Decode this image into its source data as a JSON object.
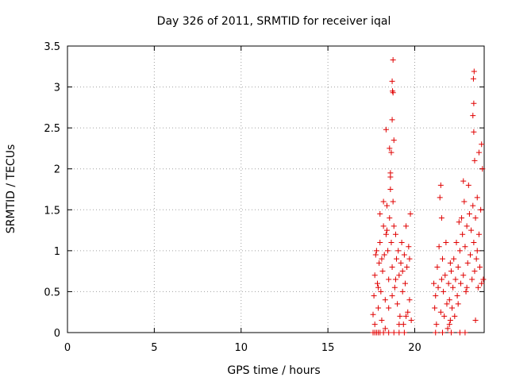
{
  "chart_data": {
    "type": "scatter",
    "title": "Day 326 of 2011, SRMTID for receiver iqal",
    "xlabel": "GPS time / hours",
    "ylabel": "SRMTID / TECUs",
    "xlim": [
      0,
      24
    ],
    "ylim": [
      0,
      3.5
    ],
    "xticks": [
      0,
      5,
      10,
      15,
      20
    ],
    "xtick_labels": [
      "0",
      "5",
      "10",
      "15",
      "20"
    ],
    "yticks": [
      0,
      0.5,
      1,
      1.5,
      2,
      2.5,
      3,
      3.5
    ],
    "ytick_labels": [
      "0",
      "0.5",
      "1",
      "1.5",
      "2",
      "2.5",
      "3",
      "3.5"
    ],
    "grid": true,
    "marker": "+",
    "color": "#e00000",
    "series": [
      {
        "name": "SRMTID",
        "points": [
          [
            17.6,
            0.0
          ],
          [
            17.7,
            0.0
          ],
          [
            17.8,
            0.0
          ],
          [
            17.9,
            0.0
          ],
          [
            18.0,
            0.0
          ],
          [
            18.2,
            0.0
          ],
          [
            18.5,
            0.0
          ],
          [
            18.8,
            0.0
          ],
          [
            19.1,
            0.0
          ],
          [
            19.4,
            0.0
          ],
          [
            17.6,
            0.22
          ],
          [
            17.65,
            0.45
          ],
          [
            17.7,
            0.7
          ],
          [
            17.75,
            0.95
          ],
          [
            17.8,
            1.0
          ],
          [
            17.85,
            0.6
          ],
          [
            17.9,
            0.3
          ],
          [
            17.95,
            0.85
          ],
          [
            18.0,
            1.1
          ],
          [
            18.05,
            0.5
          ],
          [
            18.1,
            0.15
          ],
          [
            18.15,
            0.75
          ],
          [
            18.2,
            1.3
          ],
          [
            18.25,
            0.95
          ],
          [
            18.3,
            0.4
          ],
          [
            18.35,
            1.2
          ],
          [
            18.4,
            1.55
          ],
          [
            18.45,
            1.0
          ],
          [
            18.5,
            0.65
          ],
          [
            18.55,
            1.4
          ],
          [
            18.6,
            1.75
          ],
          [
            18.65,
            1.1
          ],
          [
            18.7,
            0.8
          ],
          [
            18.75,
            1.6
          ],
          [
            18.8,
            1.3
          ],
          [
            18.85,
            0.55
          ],
          [
            18.9,
            1.2
          ],
          [
            18.95,
            0.9
          ],
          [
            19.0,
            0.35
          ],
          [
            19.05,
            1.0
          ],
          [
            19.1,
            0.7
          ],
          [
            19.15,
            0.2
          ],
          [
            19.2,
            0.85
          ],
          [
            19.25,
            1.1
          ],
          [
            19.3,
            0.5
          ],
          [
            19.35,
            0.1
          ],
          [
            19.4,
            0.95
          ],
          [
            19.45,
            0.6
          ],
          [
            19.5,
            1.3
          ],
          [
            19.55,
            0.8
          ],
          [
            19.6,
            0.25
          ],
          [
            19.65,
            1.05
          ],
          [
            19.7,
            0.4
          ],
          [
            19.75,
            1.45
          ],
          [
            19.8,
            0.15
          ],
          [
            17.7,
            0.1
          ],
          [
            17.9,
            0.55
          ],
          [
            18.1,
            0.9
          ],
          [
            18.3,
            0.05
          ],
          [
            18.5,
            0.3
          ],
          [
            18.7,
            0.45
          ],
          [
            18.9,
            0.65
          ],
          [
            19.1,
            0.1
          ],
          [
            19.3,
            0.75
          ],
          [
            19.5,
            0.2
          ],
          [
            19.7,
            0.9
          ],
          [
            18.0,
            1.45
          ],
          [
            18.2,
            1.6
          ],
          [
            18.4,
            1.25
          ],
          [
            18.6,
            1.9
          ],
          [
            18.35,
            2.48
          ],
          [
            18.55,
            2.25
          ],
          [
            18.6,
            1.95
          ],
          [
            18.65,
            2.2
          ],
          [
            18.7,
            2.6
          ],
          [
            18.72,
            2.95
          ],
          [
            18.75,
            2.93
          ],
          [
            18.7,
            3.07
          ],
          [
            18.75,
            3.33
          ],
          [
            18.8,
            2.35
          ],
          [
            21.2,
            0.0
          ],
          [
            21.6,
            0.0
          ],
          [
            22.1,
            0.0
          ],
          [
            22.6,
            0.0
          ],
          [
            22.9,
            0.0
          ],
          [
            21.1,
            0.6
          ],
          [
            21.15,
            0.3
          ],
          [
            21.2,
            0.45
          ],
          [
            21.25,
            0.1
          ],
          [
            21.3,
            0.8
          ],
          [
            21.35,
            0.55
          ],
          [
            21.4,
            1.05
          ],
          [
            21.45,
            1.65
          ],
          [
            21.5,
            1.8
          ],
          [
            21.55,
            1.4
          ],
          [
            21.6,
            0.9
          ],
          [
            21.65,
            0.5
          ],
          [
            21.7,
            0.2
          ],
          [
            21.75,
            0.7
          ],
          [
            21.8,
            1.1
          ],
          [
            21.85,
            0.35
          ],
          [
            21.9,
            0.05
          ],
          [
            21.95,
            0.6
          ],
          [
            22.0,
            0.4
          ],
          [
            22.05,
            0.15
          ],
          [
            22.1,
            0.75
          ],
          [
            22.15,
            0.3
          ],
          [
            22.2,
            0.55
          ],
          [
            22.25,
            0.9
          ],
          [
            22.3,
            0.2
          ],
          [
            22.35,
            0.65
          ],
          [
            22.4,
            1.1
          ],
          [
            22.45,
            0.45
          ],
          [
            22.5,
            0.8
          ],
          [
            22.55,
            1.35
          ],
          [
            22.6,
            1.0
          ],
          [
            22.65,
            0.6
          ],
          [
            22.7,
            1.4
          ],
          [
            22.75,
            1.2
          ],
          [
            22.8,
            0.7
          ],
          [
            22.85,
            1.6
          ],
          [
            22.9,
            1.05
          ],
          [
            22.95,
            0.5
          ],
          [
            23.0,
            1.3
          ],
          [
            23.05,
            0.85
          ],
          [
            23.1,
            1.8
          ],
          [
            23.15,
            1.45
          ],
          [
            23.2,
            0.95
          ],
          [
            23.25,
            1.25
          ],
          [
            23.3,
            0.65
          ],
          [
            23.35,
            1.55
          ],
          [
            23.4,
            1.1
          ],
          [
            23.45,
            0.75
          ],
          [
            23.5,
            1.4
          ],
          [
            23.55,
            0.9
          ],
          [
            23.6,
            1.65
          ],
          [
            23.65,
            0.55
          ],
          [
            23.7,
            1.2
          ],
          [
            23.75,
            0.8
          ],
          [
            23.8,
            1.5
          ],
          [
            23.85,
            0.6
          ],
          [
            23.9,
            2.0
          ],
          [
            23.95,
            0.65
          ],
          [
            21.5,
            0.25
          ],
          [
            22.0,
            0.1
          ],
          [
            22.5,
            0.35
          ],
          [
            23.0,
            0.55
          ],
          [
            23.5,
            0.15
          ],
          [
            23.7,
            2.2
          ],
          [
            23.85,
            2.3
          ],
          [
            23.4,
            2.8
          ],
          [
            23.35,
            2.65
          ],
          [
            23.4,
            2.45
          ],
          [
            23.45,
            2.1
          ],
          [
            23.38,
            3.1
          ],
          [
            23.42,
            3.19
          ],
          [
            21.55,
            0.65
          ],
          [
            22.05,
            0.85
          ],
          [
            22.8,
            1.85
          ],
          [
            23.6,
            1.0
          ]
        ]
      }
    ]
  }
}
